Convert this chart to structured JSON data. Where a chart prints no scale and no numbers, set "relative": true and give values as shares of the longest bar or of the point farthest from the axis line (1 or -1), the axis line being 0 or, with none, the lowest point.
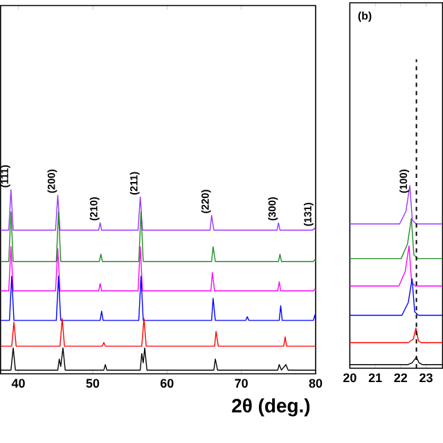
{
  "chart_data": [
    {
      "type": "line",
      "relative": true,
      "xlabel": "2θ (deg.)",
      "xlim": [
        37.6,
        80
      ],
      "xticks": [
        40,
        50,
        60,
        70,
        80
      ],
      "series": [
        {
          "color": "#9933ff",
          "x": [
            37.6,
            38.7,
            39.0,
            39.3,
            45.0,
            45.3,
            45.6,
            50.8,
            51.0,
            51.2,
            56.1,
            56.4,
            56.7,
            65.8,
            66.0,
            66.3,
            74.8,
            75.0,
            75.2,
            79.6,
            79.8,
            80
          ],
          "values": [
            0.78,
            0.78,
            1.0,
            0.78,
            0.78,
            0.97,
            0.78,
            0.78,
            0.82,
            0.78,
            0.78,
            0.96,
            0.78,
            0.78,
            0.86,
            0.78,
            0.78,
            0.82,
            0.78,
            0.78,
            0.79,
            0.78
          ]
        },
        {
          "color": "#228b22",
          "x": [
            37.6,
            38.7,
            39.0,
            39.3,
            45.1,
            45.4,
            45.7,
            50.9,
            51.1,
            51.3,
            56.2,
            56.5,
            56.8,
            66.0,
            66.2,
            66.5,
            75.0,
            75.2,
            75.4,
            79.7,
            79.9,
            80
          ],
          "values": [
            0.61,
            0.61,
            0.88,
            0.61,
            0.61,
            0.88,
            0.61,
            0.61,
            0.65,
            0.61,
            0.61,
            0.88,
            0.61,
            0.61,
            0.69,
            0.61,
            0.61,
            0.65,
            0.61,
            0.61,
            0.62,
            0.61
          ]
        },
        {
          "color": "#ff00ff",
          "x": [
            37.6,
            38.7,
            39.0,
            39.3,
            45.0,
            45.3,
            45.6,
            50.8,
            51.0,
            51.2,
            56.1,
            56.4,
            56.7,
            65.9,
            66.1,
            66.4,
            74.9,
            75.1,
            75.3,
            79.7,
            79.9,
            80
          ],
          "values": [
            0.45,
            0.45,
            0.69,
            0.45,
            0.45,
            0.68,
            0.45,
            0.45,
            0.49,
            0.45,
            0.45,
            0.69,
            0.45,
            0.45,
            0.55,
            0.45,
            0.45,
            0.5,
            0.45,
            0.45,
            0.46,
            0.45
          ]
        },
        {
          "color": "#0000ff",
          "x": [
            37.6,
            38.8,
            39.1,
            39.4,
            45.1,
            45.4,
            45.7,
            51.0,
            51.2,
            51.4,
            56.2,
            56.5,
            56.8,
            66.0,
            66.2,
            66.5,
            70.6,
            70.8,
            71.0,
            75.1,
            75.3,
            75.5,
            79.7,
            79.9,
            80
          ],
          "values": [
            0.29,
            0.29,
            0.53,
            0.29,
            0.29,
            0.53,
            0.29,
            0.29,
            0.34,
            0.29,
            0.29,
            0.53,
            0.29,
            0.29,
            0.41,
            0.29,
            0.29,
            0.31,
            0.29,
            0.29,
            0.37,
            0.29,
            0.29,
            0.32,
            0.29
          ]
        },
        {
          "color": "#ff0000",
          "x": [
            37.6,
            39.1,
            39.4,
            39.7,
            45.6,
            45.9,
            46.2,
            51.3,
            51.5,
            51.7,
            56.6,
            56.9,
            57.2,
            66.4,
            66.6,
            66.9,
            75.7,
            75.9,
            76.1,
            80
          ],
          "values": [
            0.15,
            0.15,
            0.28,
            0.15,
            0.15,
            0.3,
            0.15,
            0.15,
            0.17,
            0.15,
            0.15,
            0.3,
            0.15,
            0.15,
            0.23,
            0.15,
            0.15,
            0.2,
            0.15,
            0.15
          ]
        },
        {
          "color": "#000000",
          "x": [
            37.6,
            39.0,
            39.3,
            39.6,
            45.3,
            45.5,
            45.7,
            46.0,
            46.3,
            51.5,
            51.7,
            51.9,
            56.4,
            56.6,
            56.8,
            57.0,
            57.3,
            66.3,
            66.5,
            66.8,
            74.9,
            75.1,
            75.4,
            76.0,
            76.3,
            80
          ],
          "values": [
            0.02,
            0.02,
            0.14,
            0.02,
            0.02,
            0.08,
            0.04,
            0.14,
            0.02,
            0.02,
            0.05,
            0.02,
            0.02,
            0.11,
            0.06,
            0.14,
            0.02,
            0.02,
            0.08,
            0.02,
            0.02,
            0.05,
            0.02,
            0.05,
            0.02,
            0.02
          ]
        }
      ],
      "annotations": [
        {
          "text": "(111)",
          "x": 39.0,
          "y": 1.0
        },
        {
          "text": "(200)",
          "x": 45.3,
          "y": 0.97
        },
        {
          "text": "(210)",
          "x": 51.0,
          "y": 0.82
        },
        {
          "text": "(211)",
          "x": 56.4,
          "y": 0.96
        },
        {
          "text": "(220)",
          "x": 66.0,
          "y": 0.86
        },
        {
          "text": "(300)",
          "x": 75.0,
          "y": 0.82
        },
        {
          "text": "(131)",
          "x": 79.8,
          "y": 0.79
        }
      ]
    },
    {
      "type": "line",
      "relative": true,
      "xlim": [
        20,
        23.65
      ],
      "xticks": [
        20,
        21,
        22,
        23
      ],
      "series": [
        {
          "color": "#9933ff",
          "x": [
            20,
            21.96,
            22.21,
            22.36,
            22.46,
            22.61,
            23.65
          ],
          "values": [
            0.79,
            0.79,
            0.86,
            1.0,
            0.81,
            0.79,
            0.79
          ]
        },
        {
          "color": "#228b22",
          "x": [
            20,
            22.02,
            22.27,
            22.42,
            22.52,
            22.67,
            23.65
          ],
          "values": [
            0.6,
            0.6,
            0.68,
            0.82,
            0.62,
            0.6,
            0.6
          ]
        },
        {
          "color": "#ff00ff",
          "x": [
            20,
            21.93,
            22.18,
            22.33,
            22.43,
            22.58,
            23.65
          ],
          "values": [
            0.45,
            0.45,
            0.53,
            0.67,
            0.47,
            0.45,
            0.45
          ]
        },
        {
          "color": "#0000ff",
          "x": [
            20,
            22.05,
            22.3,
            22.45,
            22.55,
            22.7,
            23.65
          ],
          "values": [
            0.29,
            0.29,
            0.36,
            0.49,
            0.31,
            0.29,
            0.29
          ]
        },
        {
          "color": "#ff0000",
          "x": [
            20,
            22.3,
            22.5,
            22.6,
            22.7,
            22.8,
            23.65
          ],
          "values": [
            0.14,
            0.14,
            0.16,
            0.22,
            0.15,
            0.14,
            0.14
          ]
        },
        {
          "color": "#000000",
          "x": [
            20,
            22.3,
            22.45,
            22.62,
            22.72,
            22.85,
            23.65
          ],
          "values": [
            0.02,
            0.02,
            0.03,
            0.06,
            0.03,
            0.02,
            0.02
          ]
        }
      ],
      "ref_lines": [
        {
          "axis": "x",
          "value": 22.62,
          "line_style": "dashed",
          "color": "#000000"
        }
      ],
      "annotations": [
        "(b)",
        {
          "text": "(100)",
          "x": 22.36,
          "y": 1.0
        }
      ]
    }
  ]
}
